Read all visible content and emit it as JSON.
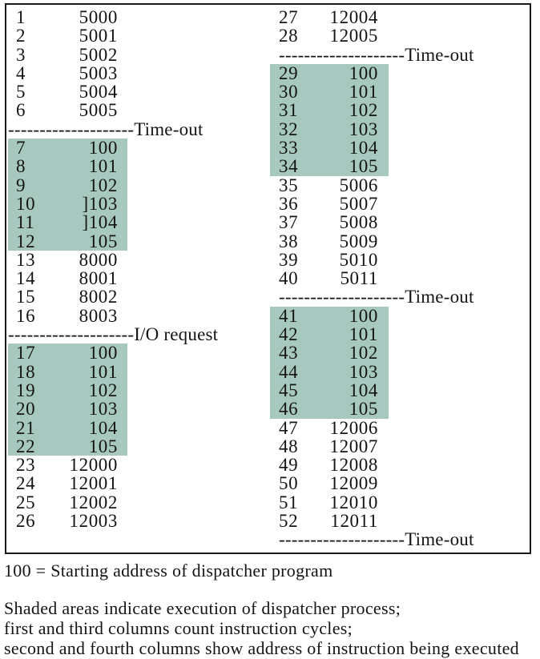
{
  "colors": {
    "shade": "#a7c8bf",
    "border": "#1a1a1a",
    "text": "#141414",
    "background": "#ffffff"
  },
  "figure": {
    "caption_line": "100 = Starting address of dispatcher program",
    "notes": [
      "Shaded areas indicate execution of dispatcher process;",
      "first and third columns count instruction cycles;",
      "second and fourth columns show address of instruction being executed"
    ],
    "columns": {
      "left": [
        {
          "type": "row",
          "cycle": "1",
          "address": "5000",
          "shaded": false
        },
        {
          "type": "row",
          "cycle": "2",
          "address": "5001",
          "shaded": false
        },
        {
          "type": "row",
          "cycle": "3",
          "address": "5002",
          "shaded": false
        },
        {
          "type": "row",
          "cycle": "4",
          "address": "5003",
          "shaded": false
        },
        {
          "type": "row",
          "cycle": "5",
          "address": "5004",
          "shaded": false
        },
        {
          "type": "row",
          "cycle": "6",
          "address": "5005",
          "shaded": false
        },
        {
          "type": "sep",
          "dashes": "--------------------",
          "label": "Time-out"
        },
        {
          "type": "row",
          "cycle": "7",
          "address": "100",
          "shaded": true
        },
        {
          "type": "row",
          "cycle": "8",
          "address": "101",
          "shaded": true
        },
        {
          "type": "row",
          "cycle": "9",
          "address": "102",
          "shaded": true
        },
        {
          "type": "row",
          "cycle": "10",
          "address": "]103",
          "shaded": true
        },
        {
          "type": "row",
          "cycle": "11",
          "address": "]104",
          "shaded": true
        },
        {
          "type": "row",
          "cycle": "12",
          "address": "105",
          "shaded": true
        },
        {
          "type": "row",
          "cycle": "13",
          "address": "8000",
          "shaded": false
        },
        {
          "type": "row",
          "cycle": "14",
          "address": "8001",
          "shaded": false
        },
        {
          "type": "row",
          "cycle": "15",
          "address": "8002",
          "shaded": false
        },
        {
          "type": "row",
          "cycle": "16",
          "address": "8003",
          "shaded": false
        },
        {
          "type": "sep",
          "dashes": "--------------------",
          "label": "I/O request"
        },
        {
          "type": "row",
          "cycle": "17",
          "address": "100",
          "shaded": true
        },
        {
          "type": "row",
          "cycle": "18",
          "address": "101",
          "shaded": true
        },
        {
          "type": "row",
          "cycle": "19",
          "address": "102",
          "shaded": true
        },
        {
          "type": "row",
          "cycle": "20",
          "address": "103",
          "shaded": true
        },
        {
          "type": "row",
          "cycle": "21",
          "address": "104",
          "shaded": true
        },
        {
          "type": "row",
          "cycle": "22",
          "address": "105",
          "shaded": true
        },
        {
          "type": "row",
          "cycle": "23",
          "address": "12000",
          "shaded": false
        },
        {
          "type": "row",
          "cycle": "24",
          "address": "12001",
          "shaded": false
        },
        {
          "type": "row",
          "cycle": "25",
          "address": "12002",
          "shaded": false
        },
        {
          "type": "row",
          "cycle": "26",
          "address": "12003",
          "shaded": false
        }
      ],
      "right": [
        {
          "type": "row",
          "cycle": "27",
          "address": "12004",
          "shaded": false
        },
        {
          "type": "row",
          "cycle": "28",
          "address": "12005",
          "shaded": false
        },
        {
          "type": "sep",
          "dashes": "--------------------",
          "label": "Time-out"
        },
        {
          "type": "row",
          "cycle": "29",
          "address": "100",
          "shaded": true
        },
        {
          "type": "row",
          "cycle": "30",
          "address": "101",
          "shaded": true
        },
        {
          "type": "row",
          "cycle": "31",
          "address": "102",
          "shaded": true
        },
        {
          "type": "row",
          "cycle": "32",
          "address": "103",
          "shaded": true
        },
        {
          "type": "row",
          "cycle": "33",
          "address": "104",
          "shaded": true
        },
        {
          "type": "row",
          "cycle": "34",
          "address": "105",
          "shaded": true
        },
        {
          "type": "row",
          "cycle": "35",
          "address": "5006",
          "shaded": false
        },
        {
          "type": "row",
          "cycle": "36",
          "address": "5007",
          "shaded": false
        },
        {
          "type": "row",
          "cycle": "37",
          "address": "5008",
          "shaded": false
        },
        {
          "type": "row",
          "cycle": "38",
          "address": "5009",
          "shaded": false
        },
        {
          "type": "row",
          "cycle": "39",
          "address": "5010",
          "shaded": false
        },
        {
          "type": "row",
          "cycle": "40",
          "address": "5011",
          "shaded": false
        },
        {
          "type": "sep",
          "dashes": "--------------------",
          "label": "Time-out"
        },
        {
          "type": "row",
          "cycle": "41",
          "address": "100",
          "shaded": true
        },
        {
          "type": "row",
          "cycle": "42",
          "address": "101",
          "shaded": true
        },
        {
          "type": "row",
          "cycle": "43",
          "address": "102",
          "shaded": true
        },
        {
          "type": "row",
          "cycle": "44",
          "address": "103",
          "shaded": true
        },
        {
          "type": "row",
          "cycle": "45",
          "address": "104",
          "shaded": true
        },
        {
          "type": "row",
          "cycle": "46",
          "address": "105",
          "shaded": true
        },
        {
          "type": "row",
          "cycle": "47",
          "address": "12006",
          "shaded": false
        },
        {
          "type": "row",
          "cycle": "48",
          "address": "12007",
          "shaded": false
        },
        {
          "type": "row",
          "cycle": "49",
          "address": "12008",
          "shaded": false
        },
        {
          "type": "row",
          "cycle": "50",
          "address": "12009",
          "shaded": false
        },
        {
          "type": "row",
          "cycle": "51",
          "address": "12010",
          "shaded": false
        },
        {
          "type": "row",
          "cycle": "52",
          "address": "12011",
          "shaded": false
        },
        {
          "type": "sep",
          "dashes": "--------------------",
          "label": "Time-out"
        }
      ]
    }
  }
}
